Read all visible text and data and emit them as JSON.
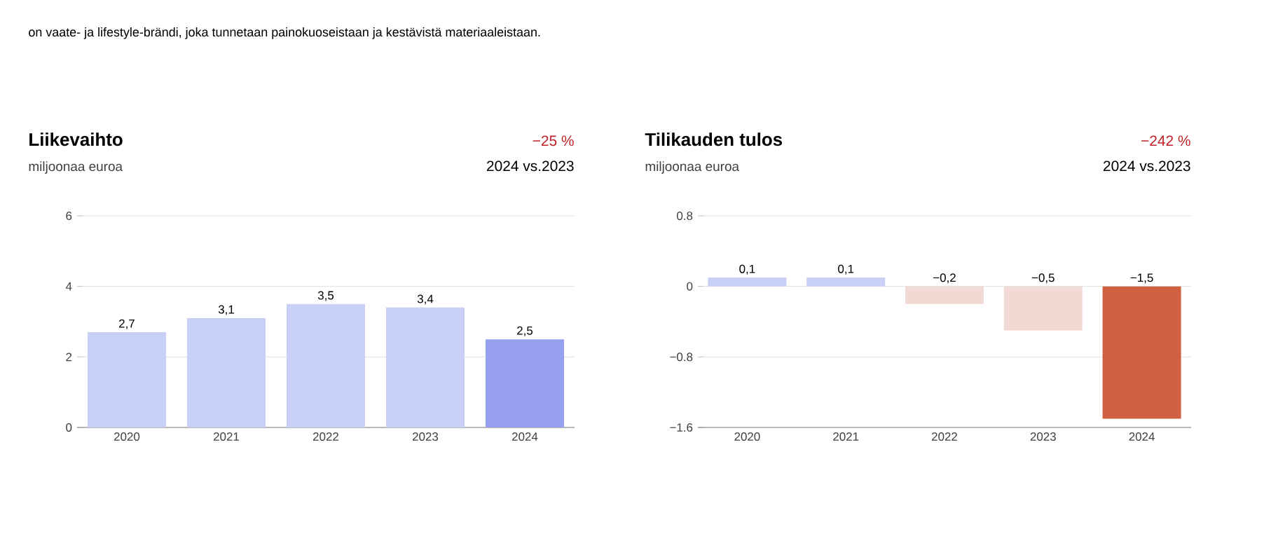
{
  "chart_data": [
    {
      "type": "bar",
      "title": "Liikevaihto",
      "subtitle": "miljoonaa euroa",
      "annotations": [
        "on vaate- ja lifestyle-brändi, joka tunnetaan painokuoseistaan ja kestävistä materiaaleistaan.",
        "−25 %",
        "2024 vs.2023"
      ],
      "categories": [
        "2020",
        "2021",
        "2022",
        "2023",
        "2024"
      ],
      "values": [
        2.7,
        3.1,
        3.5,
        3.4,
        2.5
      ],
      "value_labels": [
        "2,7",
        "3,1",
        "3,5",
        "3,4",
        "2,5"
      ],
      "colors": [
        "#c8d0f5",
        "#c8d0f5",
        "#c8d0f5",
        "#c8d0f5",
        "#97a0ee"
      ],
      "ylim": [
        0,
        6
      ],
      "yticks": [
        0,
        2,
        4,
        6
      ],
      "grid": "y"
    },
    {
      "type": "bar",
      "title": "Tilikauden tulos",
      "subtitle": "miljoonaa euroa",
      "annotations": [
        "−242 %",
        "2024 vs.2023"
      ],
      "categories": [
        "2020",
        "2021",
        "2022",
        "2023",
        "2024"
      ],
      "values": [
        0.1,
        0.1,
        -0.2,
        -0.5,
        -1.5
      ],
      "value_labels": [
        "0,1",
        "0,1",
        "−0,2",
        "−0,5",
        "−1,5"
      ],
      "colors": [
        "#c8d0f5",
        "#c8d0f5",
        "#f3d9d3",
        "#f3d9d3",
        "#d0603f"
      ],
      "ylim": [
        -1.6,
        0.8
      ],
      "yticks": [
        {
          "value": -1.6,
          "label": "−1.6"
        },
        {
          "value": -0.8,
          "label": "−0.8"
        },
        0,
        0.8
      ],
      "grid": "y"
    }
  ]
}
